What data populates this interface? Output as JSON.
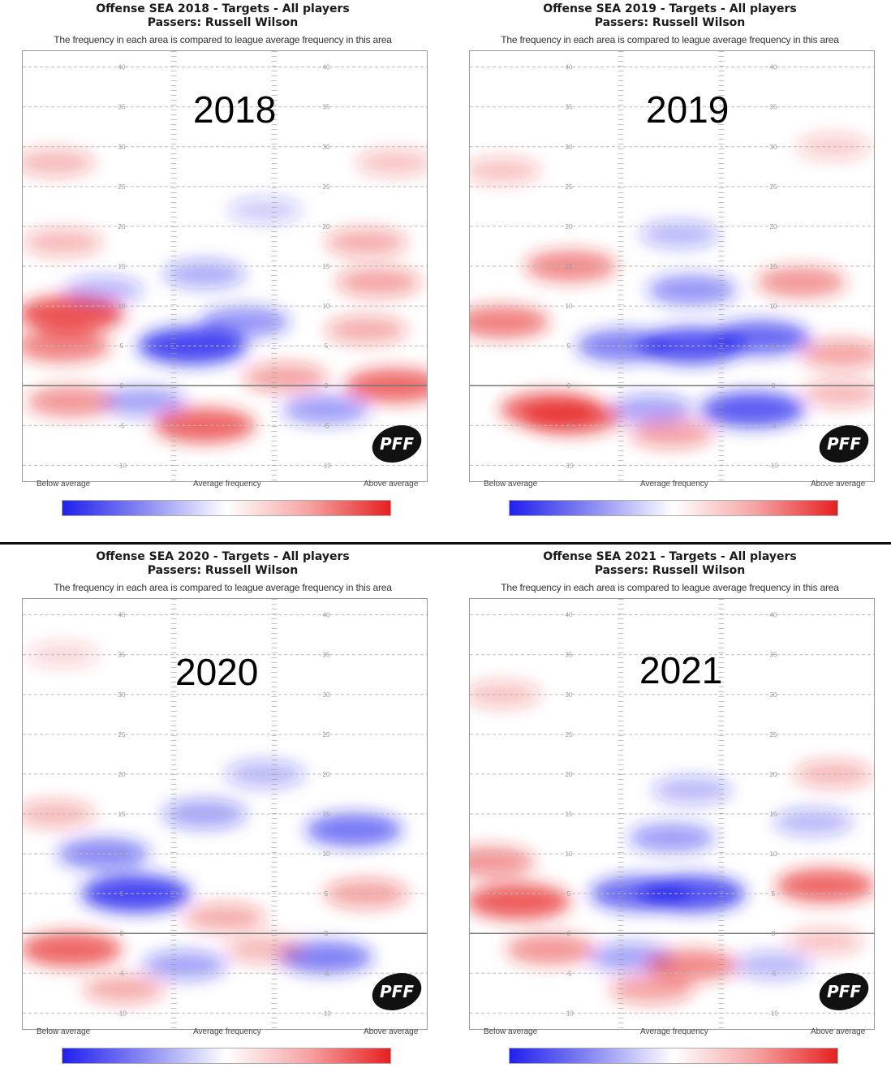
{
  "panels": [
    {
      "title": "Offense SEA 2018 - Targets - All players",
      "passer": "Passers: Russell Wilson",
      "subtitle": "The frequency in each area is compared to league average frequency in this area",
      "year": "2018",
      "watermark": "PFF",
      "legend": {
        "low": "Below average",
        "mid": "Average frequency",
        "high": "Above average"
      }
    },
    {
      "title": "Offense SEA 2019 - Targets - All players",
      "passer": "Passers: Russell Wilson",
      "subtitle": "The frequency in each area is compared to league average frequency in this area",
      "year": "2019",
      "watermark": "PFF",
      "legend": {
        "low": "Below average",
        "mid": "Average frequency",
        "high": "Above average"
      }
    },
    {
      "title": "Offense SEA 2020 - Targets - All players",
      "passer": "Passers: Russell Wilson",
      "subtitle": "The frequency in each area is compared to league average frequency in this area",
      "year": "2020",
      "watermark": "PFF",
      "legend": {
        "low": "Below average",
        "mid": "Average frequency",
        "high": "Above average"
      }
    },
    {
      "title": "Offense SEA 2021 - Targets - All players",
      "passer": "Passers: Russell Wilson",
      "subtitle": "The frequency in each area is compared to league average frequency in this area",
      "year": "2021",
      "watermark": "PFF",
      "legend": {
        "low": "Below average",
        "mid": "Average frequency",
        "high": "Above average"
      }
    }
  ],
  "chart_data": [
    {
      "type": "heatmap",
      "title": "Offense SEA 2018 - Targets - All players",
      "y_ticks": [
        40,
        35,
        30,
        25,
        20,
        15,
        10,
        5,
        0,
        -5,
        -10
      ],
      "ylim": [
        -12,
        42
      ],
      "colors": {
        "below": "#2020ee",
        "average": "#ffffff",
        "above": "#e62020"
      },
      "blobs": [
        {
          "x": 0.12,
          "y": 9,
          "value": 0.85
        },
        {
          "x": 0.1,
          "y": 5,
          "value": 0.6
        },
        {
          "x": 0.08,
          "y": 28,
          "value": 0.3
        },
        {
          "x": 0.92,
          "y": 28,
          "value": 0.25
        },
        {
          "x": 0.1,
          "y": 18,
          "value": 0.3
        },
        {
          "x": 0.42,
          "y": 5,
          "value": -0.9
        },
        {
          "x": 0.55,
          "y": 8,
          "value": -0.5
        },
        {
          "x": 0.45,
          "y": 14,
          "value": -0.35
        },
        {
          "x": 0.6,
          "y": 22,
          "value": -0.2
        },
        {
          "x": 0.45,
          "y": -5,
          "value": 0.75
        },
        {
          "x": 0.92,
          "y": 0,
          "value": 0.7
        },
        {
          "x": 0.65,
          "y": 1,
          "value": 0.4
        },
        {
          "x": 0.12,
          "y": -2,
          "value": 0.5
        },
        {
          "x": 0.3,
          "y": -2,
          "value": -0.4
        },
        {
          "x": 0.75,
          "y": -3,
          "value": -0.45
        },
        {
          "x": 0.88,
          "y": 13,
          "value": 0.4
        },
        {
          "x": 0.85,
          "y": 18,
          "value": 0.35
        },
        {
          "x": 0.85,
          "y": 7,
          "value": 0.35
        },
        {
          "x": 0.2,
          "y": 12,
          "value": -0.3
        }
      ]
    },
    {
      "type": "heatmap",
      "title": "Offense SEA 2019 - Targets - All players",
      "y_ticks": [
        40,
        35,
        30,
        25,
        20,
        15,
        10,
        5,
        0,
        -5,
        -10
      ],
      "ylim": [
        -12,
        42
      ],
      "colors": {
        "below": "#2020ee",
        "average": "#ffffff",
        "above": "#e62020"
      },
      "blobs": [
        {
          "x": 0.25,
          "y": 15,
          "value": 0.55
        },
        {
          "x": 0.08,
          "y": 8,
          "value": 0.6
        },
        {
          "x": 0.08,
          "y": 27,
          "value": 0.25
        },
        {
          "x": 0.9,
          "y": 30,
          "value": 0.2
        },
        {
          "x": 0.55,
          "y": 5,
          "value": -0.85
        },
        {
          "x": 0.72,
          "y": 6,
          "value": -0.7
        },
        {
          "x": 0.38,
          "y": 5,
          "value": -0.6
        },
        {
          "x": 0.55,
          "y": 12,
          "value": -0.5
        },
        {
          "x": 0.52,
          "y": 19,
          "value": -0.3
        },
        {
          "x": 0.7,
          "y": -3,
          "value": -0.8
        },
        {
          "x": 0.45,
          "y": -3,
          "value": -0.4
        },
        {
          "x": 0.2,
          "y": -3,
          "value": 0.75
        },
        {
          "x": 0.25,
          "y": -4,
          "value": 0.7
        },
        {
          "x": 0.5,
          "y": -6,
          "value": 0.4
        },
        {
          "x": 0.82,
          "y": 13,
          "value": 0.5
        },
        {
          "x": 0.92,
          "y": 4,
          "value": 0.4
        },
        {
          "x": 0.92,
          "y": -1,
          "value": 0.3
        }
      ]
    },
    {
      "type": "heatmap",
      "title": "Offense SEA 2020 - Targets - All players",
      "y_ticks": [
        40,
        35,
        30,
        25,
        20,
        15,
        10,
        5,
        0,
        -5,
        -10
      ],
      "ylim": [
        -12,
        42
      ],
      "colors": {
        "below": "#2020ee",
        "average": "#ffffff",
        "above": "#e62020"
      },
      "blobs": [
        {
          "x": 0.28,
          "y": 5,
          "value": -0.9
        },
        {
          "x": 0.2,
          "y": 10,
          "value": -0.55
        },
        {
          "x": 0.45,
          "y": 15,
          "value": -0.4
        },
        {
          "x": 0.82,
          "y": 13,
          "value": -0.65
        },
        {
          "x": 0.6,
          "y": 20,
          "value": -0.3
        },
        {
          "x": 0.12,
          "y": -2,
          "value": 0.75
        },
        {
          "x": 0.08,
          "y": 15,
          "value": 0.3
        },
        {
          "x": 0.5,
          "y": 2,
          "value": 0.35
        },
        {
          "x": 0.85,
          "y": 5,
          "value": 0.4
        },
        {
          "x": 0.75,
          "y": -3,
          "value": -0.6
        },
        {
          "x": 0.4,
          "y": -4,
          "value": -0.4
        },
        {
          "x": 0.25,
          "y": -7,
          "value": 0.35
        },
        {
          "x": 0.6,
          "y": -2,
          "value": 0.3
        },
        {
          "x": 0.1,
          "y": 35,
          "value": 0.15
        }
      ]
    },
    {
      "type": "heatmap",
      "title": "Offense SEA 2021 - Targets - All players",
      "y_ticks": [
        40,
        35,
        30,
        25,
        20,
        15,
        10,
        5,
        0,
        -5,
        -10
      ],
      "ylim": [
        -12,
        42
      ],
      "colors": {
        "below": "#2020ee",
        "average": "#ffffff",
        "above": "#e62020"
      },
      "blobs": [
        {
          "x": 0.55,
          "y": 5,
          "value": -0.85
        },
        {
          "x": 0.42,
          "y": 5,
          "value": -0.7
        },
        {
          "x": 0.5,
          "y": 12,
          "value": -0.45
        },
        {
          "x": 0.55,
          "y": 18,
          "value": -0.3
        },
        {
          "x": 0.85,
          "y": 14,
          "value": -0.3
        },
        {
          "x": 0.12,
          "y": 4,
          "value": 0.8
        },
        {
          "x": 0.05,
          "y": 9,
          "value": 0.5
        },
        {
          "x": 0.88,
          "y": 6,
          "value": 0.7
        },
        {
          "x": 0.08,
          "y": 30,
          "value": 0.25
        },
        {
          "x": 0.9,
          "y": 20,
          "value": 0.3
        },
        {
          "x": 0.2,
          "y": -2,
          "value": 0.5
        },
        {
          "x": 0.4,
          "y": -3,
          "value": -0.4
        },
        {
          "x": 0.55,
          "y": -4,
          "value": 0.55
        },
        {
          "x": 0.45,
          "y": -7,
          "value": 0.4
        },
        {
          "x": 0.75,
          "y": -4,
          "value": -0.3
        },
        {
          "x": 0.88,
          "y": -1,
          "value": 0.25
        }
      ]
    }
  ]
}
